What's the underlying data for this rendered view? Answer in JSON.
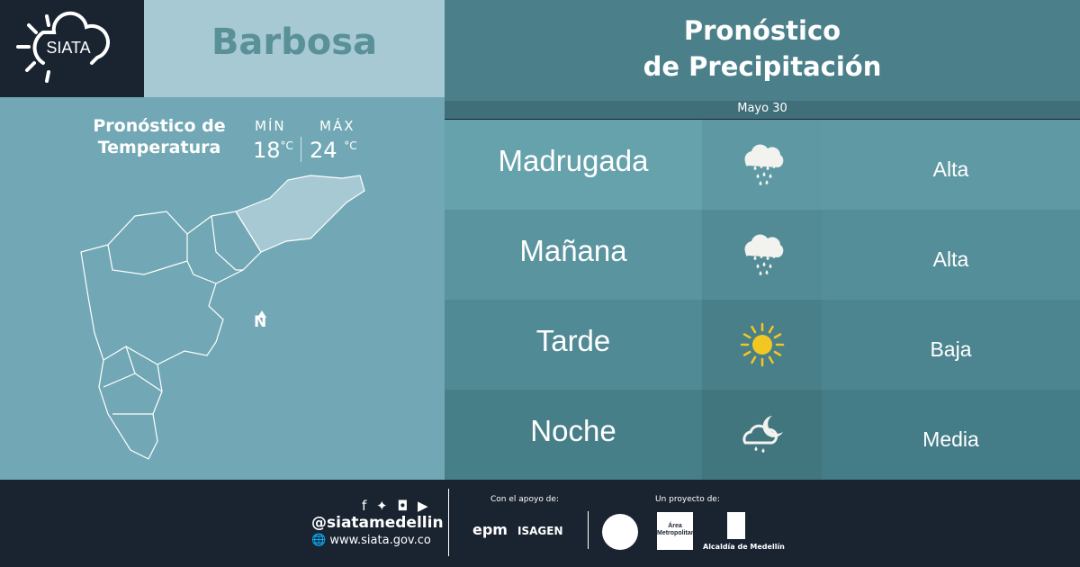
{
  "brand": {
    "logo_text": "SIATA"
  },
  "town": "Barbosa",
  "temperature": {
    "title_line1": "Pronóstico de",
    "title_line2": "Temperatura",
    "min_label": "MÍN",
    "min_value": "18",
    "max_label": "MÁX",
    "max_value": "24",
    "unit": "°C"
  },
  "map": {
    "north_label": "N",
    "highlight_color": "#a6c9d4"
  },
  "forecast": {
    "title_line1": "Pronóstico",
    "title_line2": "de Precipitación",
    "date": "Mayo 30",
    "rows": [
      {
        "period": "Madrugada",
        "icon": "heavy-rain-icon",
        "level": "Alta"
      },
      {
        "period": "Mañana",
        "icon": "heavy-rain-icon",
        "level": "Alta"
      },
      {
        "period": "Tarde",
        "icon": "sun-icon",
        "level": "Baja"
      },
      {
        "period": "Noche",
        "icon": "night-cloud-rain-icon",
        "level": "Media"
      }
    ]
  },
  "footer": {
    "handle": "@siatamedellin",
    "website": "www.siata.gov.co",
    "support_label": "Con el apoyo de:",
    "project_label": "Un proyecto de:",
    "sponsors": [
      "epm",
      "ISAGEN"
    ],
    "partners": [
      "Área Metropolitana",
      "Alcaldía de Medellín"
    ]
  },
  "colors": {
    "dark": "#1a2431",
    "sun": "#f2c722"
  }
}
